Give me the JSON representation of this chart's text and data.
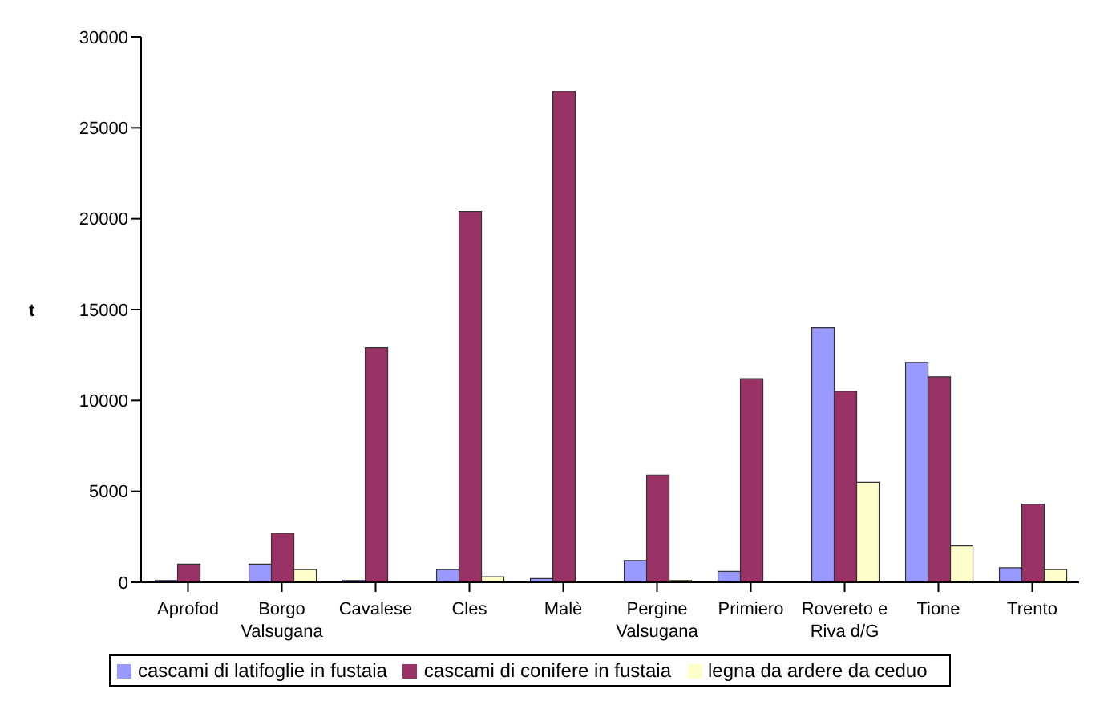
{
  "chart_data": {
    "type": "bar",
    "ylabel": "t",
    "categories": [
      "Aprofod",
      "Borgo Valsugana",
      "Cavalese",
      "Cles",
      "Malè",
      "Pergine Valsugana",
      "Primiero",
      "Rovereto e Riva d/G",
      "Tione",
      "Trento"
    ],
    "series": [
      {
        "name": "cascami di latifoglie in fustaia",
        "color": "#9999ff",
        "values": [
          100,
          1000,
          100,
          700,
          200,
          1200,
          600,
          14000,
          12100,
          800
        ]
      },
      {
        "name": "cascami di conifere in fustaia",
        "color": "#993366",
        "values": [
          1000,
          2700,
          12900,
          20400,
          27000,
          5900,
          11200,
          10500,
          11300,
          4300
        ]
      },
      {
        "name": "legna da ardere da ceduo",
        "color": "#ffffcc",
        "values": [
          0,
          700,
          0,
          300,
          0,
          100,
          0,
          5500,
          2000,
          700
        ]
      }
    ],
    "ylim": [
      0,
      30000
    ],
    "yticks": [
      0,
      5000,
      10000,
      15000,
      20000,
      25000,
      30000
    ],
    "legend": "bottom"
  }
}
